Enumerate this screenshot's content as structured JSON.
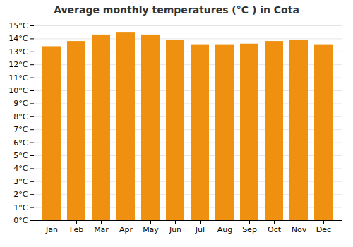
{
  "chart_data": {
    "type": "bar",
    "title": "Average monthly temperatures (°C ) in Cota",
    "categories": [
      "Jan",
      "Feb",
      "Mar",
      "Apr",
      "May",
      "Jun",
      "Jul",
      "Aug",
      "Sep",
      "Oct",
      "Nov",
      "Dec"
    ],
    "values": [
      13.4,
      13.8,
      14.3,
      14.45,
      14.3,
      13.9,
      13.5,
      13.5,
      13.6,
      13.8,
      13.9,
      13.5
    ],
    "color": "#F09010",
    "ylim": [
      0,
      15
    ],
    "yticks": [
      {
        "value": 0,
        "label": "0°C"
      },
      {
        "value": 1,
        "label": "1°C"
      },
      {
        "value": 2,
        "label": "2°C"
      },
      {
        "value": 3,
        "label": "3°C"
      },
      {
        "value": 4,
        "label": "4°C"
      },
      {
        "value": 5,
        "label": "5°C"
      },
      {
        "value": 6,
        "label": "6°C"
      },
      {
        "value": 7,
        "label": "7°C"
      },
      {
        "value": 8,
        "label": "8°C"
      },
      {
        "value": 9,
        "label": "9°C"
      },
      {
        "value": 10,
        "label": "10°C"
      },
      {
        "value": 11,
        "label": "11°C"
      },
      {
        "value": 12,
        "label": "12°C"
      },
      {
        "value": 13,
        "label": "13°C"
      },
      {
        "value": 14,
        "label": "14°C"
      },
      {
        "value": 15,
        "label": "15°C"
      }
    ],
    "grid": true
  }
}
